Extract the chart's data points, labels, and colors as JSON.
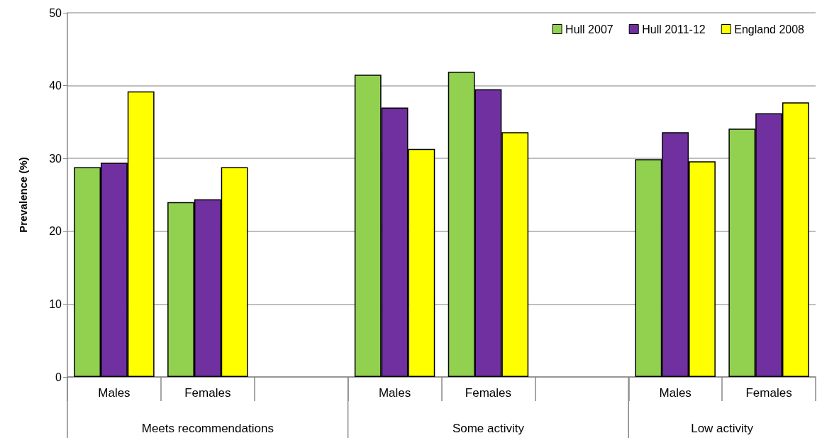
{
  "chart_data": {
    "type": "bar",
    "ylabel": "Prevalence (%)",
    "categories": [
      "Males",
      "Females",
      null,
      "Males",
      "Females",
      null,
      "Males",
      "Females"
    ],
    "series": [
      {
        "name": "Hull 2007",
        "color": "#92d050",
        "values": [
          28.8,
          24.0,
          null,
          41.5,
          41.9,
          null,
          29.9,
          34.1
        ]
      },
      {
        "name": "Hull 2011-12",
        "color": "#7030a0",
        "values": [
          29.4,
          24.4,
          null,
          37.0,
          39.5,
          null,
          33.6,
          36.2
        ]
      },
      {
        "name": "England 2008",
        "color": "#ffff00",
        "values": [
          39.2,
          28.8,
          null,
          31.3,
          33.6,
          null,
          29.6,
          37.7
        ]
      }
    ],
    "annotations": [
      "Meets recommendations",
      "Some activity",
      "Low activity"
    ],
    "ylim": [
      0,
      50
    ],
    "yticks": [
      0,
      10,
      20,
      30,
      40,
      50
    ],
    "grid": "y",
    "legend": "top right"
  }
}
